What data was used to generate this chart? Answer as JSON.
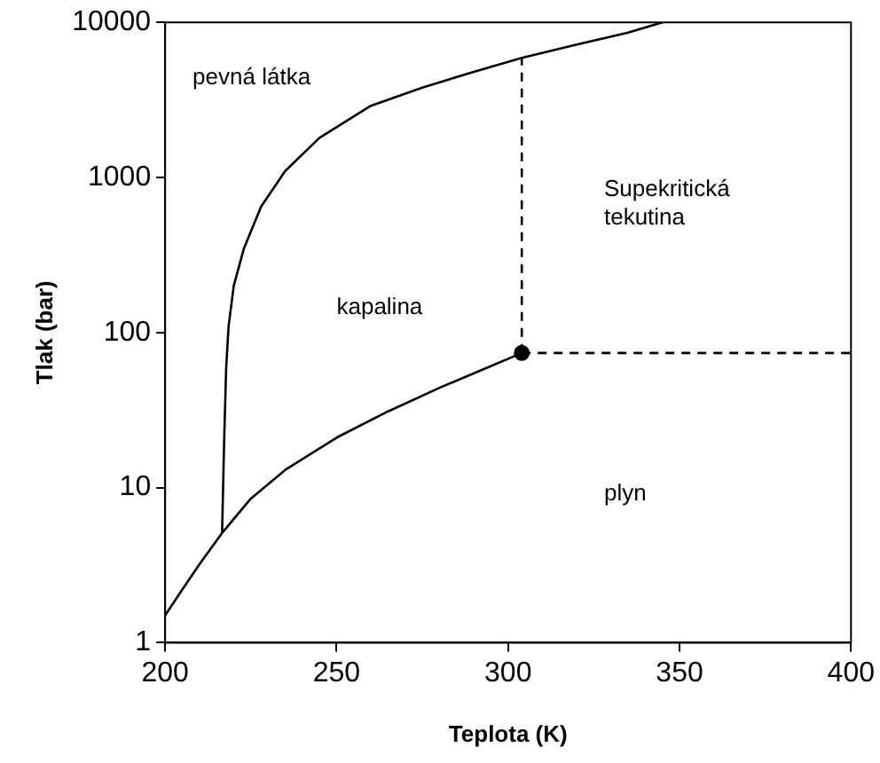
{
  "chart_data": {
    "type": "line",
    "xlabel": "Teplota (K)",
    "ylabel": "Tlak (bar)",
    "log": "y",
    "xlim": [
      200,
      400
    ],
    "xticks": [
      200,
      250,
      300,
      350,
      400
    ],
    "ylim": [
      1,
      10000
    ],
    "yticks": [
      1,
      10,
      100,
      1000,
      10000
    ],
    "grid": false,
    "legend": false,
    "series": [
      {
        "color": "#000000",
        "x": [
          200,
          205,
          210,
          216.6,
          225,
          235,
          250,
          265,
          280,
          292,
          304
        ],
        "values": [
          1.5,
          2.2,
          3.2,
          5.1,
          8.5,
          13,
          21,
          31,
          44,
          57,
          73.8
        ]
      },
      {
        "color": "#000000",
        "x": [
          216.6,
          217.2,
          217.8,
          218.5,
          220,
          223,
          228,
          235,
          245,
          260,
          275,
          290,
          304,
          320,
          335,
          345
        ],
        "values": [
          5.1,
          20,
          60,
          110,
          200,
          350,
          650,
          1100,
          1800,
          2900,
          3800,
          4800,
          5900,
          7200,
          8600,
          10000
        ]
      },
      {
        "color": "#000000",
        "line_style": "dashed",
        "x": [
          304,
          304
        ],
        "values": [
          73.8,
          5900
        ]
      },
      {
        "color": "#000000",
        "line_style": "dashed",
        "x": [
          304,
          400
        ],
        "values": [
          73.8,
          73.8
        ]
      },
      {
        "type": "scatter",
        "color": "#000000",
        "marker": "circle",
        "x": [
          304
        ],
        "values": [
          73.8
        ]
      }
    ],
    "annotations": [
      "pevná látka",
      "kapalina",
      "Supekritická\ntekutina",
      "plyn"
    ]
  }
}
